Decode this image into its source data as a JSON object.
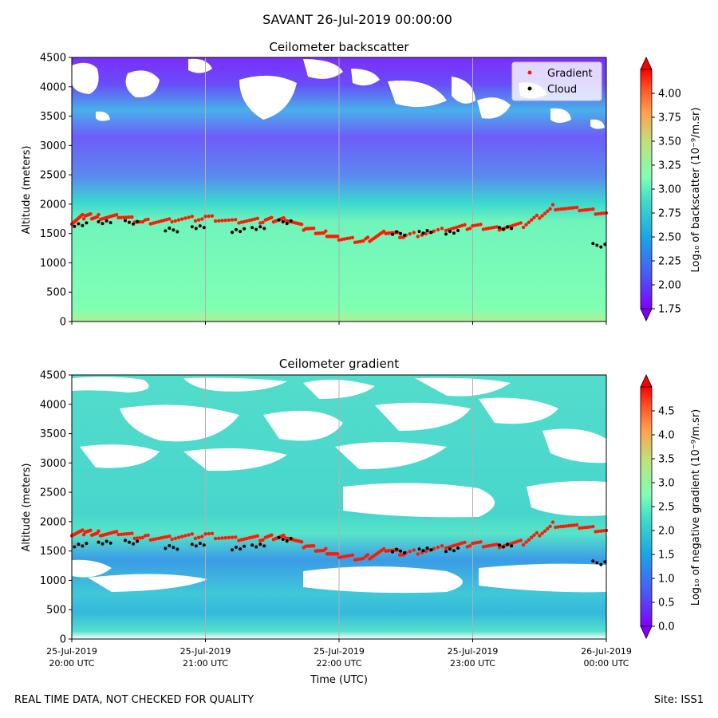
{
  "suptitle": "SAVANT 26-Jul-2019 00:00:00",
  "footer_left": "REAL TIME DATA, NOT CHECKED FOR QUALITY",
  "footer_right": "Site: ISS1",
  "colors": {
    "gradient_marker": "#ff1a00",
    "cloud_marker": "#000000",
    "background_fill_top": "#33ff99",
    "grid": "#b0b0b0"
  },
  "chart_data": [
    {
      "type": "heatmap",
      "title": "Ceilometer backscatter",
      "xlabel": "",
      "ylabel": "Altitude (meters)",
      "ylim": [
        0,
        4500
      ],
      "yticks": [
        0,
        500,
        1000,
        1500,
        2000,
        2500,
        3000,
        3500,
        4000,
        4500
      ],
      "x_hours": [
        0,
        1,
        2,
        3,
        4
      ],
      "xtick_labels": [
        "",
        "",
        "",
        "",
        ""
      ],
      "colorbar": {
        "label": "Log₁₀ of backscatter (10⁻⁹/m.sr)",
        "range": [
          1.75,
          4.25
        ],
        "ticks": [
          "1.75",
          "2.00",
          "2.25",
          "2.50",
          "2.75",
          "3.00",
          "3.25",
          "3.50",
          "3.75",
          "4.00"
        ],
        "tick_values": [
          1.75,
          2.0,
          2.25,
          2.5,
          2.75,
          3.0,
          3.25,
          3.5,
          3.75,
          4.0
        ]
      },
      "legend": {
        "position": "top-right",
        "entries": [
          "Gradient",
          "Cloud"
        ]
      },
      "gradient_points": [
        [
          0.0,
          1700
        ],
        [
          0.1,
          1800
        ],
        [
          0.2,
          1780
        ],
        [
          0.35,
          1780
        ],
        [
          0.55,
          1700
        ],
        [
          0.75,
          1720
        ],
        [
          1.0,
          1770
        ],
        [
          1.25,
          1710
        ],
        [
          1.45,
          1720
        ],
        [
          1.6,
          1760
        ],
        [
          1.75,
          1580
        ],
        [
          1.9,
          1500
        ],
        [
          2.0,
          1400
        ],
        [
          2.2,
          1380
        ],
        [
          2.35,
          1520
        ],
        [
          2.5,
          1450
        ],
        [
          2.8,
          1580
        ],
        [
          3.0,
          1620
        ],
        [
          3.2,
          1600
        ],
        [
          3.4,
          1650
        ],
        [
          3.6,
          1950
        ],
        [
          3.8,
          1900
        ],
        [
          4.0,
          1850
        ]
      ],
      "cloud_points": [
        [
          0.02,
          1650
        ],
        [
          0.2,
          1700
        ],
        [
          0.4,
          1690
        ],
        [
          0.7,
          1560
        ],
        [
          0.9,
          1600
        ],
        [
          1.2,
          1550
        ],
        [
          1.35,
          1600
        ],
        [
          1.55,
          1700
        ],
        [
          2.4,
          1500
        ],
        [
          2.6,
          1520
        ],
        [
          2.8,
          1520
        ],
        [
          3.2,
          1600
        ],
        [
          3.9,
          1300
        ]
      ]
    },
    {
      "type": "heatmap",
      "title": "Ceilometer gradient",
      "xlabel": "Time (UTC)",
      "ylabel": "Altitude (meters)",
      "ylim": [
        0,
        4500
      ],
      "yticks": [
        0,
        500,
        1000,
        1500,
        2000,
        2500,
        3000,
        3500,
        4000,
        4500
      ],
      "x_hours": [
        0,
        1,
        2,
        3,
        4
      ],
      "xtick_labels": [
        [
          "25-Jul-2019",
          "20:00 UTC"
        ],
        [
          "25-Jul-2019",
          "21:00 UTC"
        ],
        [
          "25-Jul-2019",
          "22:00 UTC"
        ],
        [
          "25-Jul-2019",
          "23:00 UTC"
        ],
        [
          "26-Jul-2019",
          "00:00 UTC"
        ]
      ],
      "colorbar": {
        "label": "Log₁₀ of negative gradient (10⁻⁹/m.sr)",
        "range": [
          0.0,
          5.0
        ],
        "ticks": [
          "0.0",
          "0.5",
          "1.0",
          "1.5",
          "2.0",
          "2.5",
          "3.0",
          "3.5",
          "4.0",
          "4.5"
        ],
        "tick_values": [
          0.0,
          0.5,
          1.0,
          1.5,
          2.0,
          2.5,
          3.0,
          3.5,
          4.0,
          4.5
        ]
      },
      "gradient_points": [
        [
          0.0,
          1800
        ],
        [
          0.1,
          1820
        ],
        [
          0.2,
          1800
        ],
        [
          0.35,
          1790
        ],
        [
          0.55,
          1730
        ],
        [
          0.75,
          1720
        ],
        [
          1.0,
          1770
        ],
        [
          1.25,
          1710
        ],
        [
          1.45,
          1720
        ],
        [
          1.6,
          1760
        ],
        [
          1.75,
          1580
        ],
        [
          1.9,
          1500
        ],
        [
          2.0,
          1400
        ],
        [
          2.2,
          1380
        ],
        [
          2.35,
          1520
        ],
        [
          2.5,
          1450
        ],
        [
          2.8,
          1580
        ],
        [
          3.0,
          1620
        ],
        [
          3.2,
          1600
        ],
        [
          3.4,
          1650
        ],
        [
          3.6,
          1950
        ],
        [
          3.8,
          1900
        ],
        [
          4.0,
          1850
        ]
      ],
      "cloud_points": [
        [
          0.02,
          1600
        ],
        [
          0.2,
          1650
        ],
        [
          0.4,
          1650
        ],
        [
          0.7,
          1560
        ],
        [
          0.9,
          1600
        ],
        [
          1.2,
          1550
        ],
        [
          1.35,
          1600
        ],
        [
          1.55,
          1700
        ],
        [
          2.4,
          1500
        ],
        [
          2.6,
          1520
        ],
        [
          2.8,
          1520
        ],
        [
          3.2,
          1600
        ],
        [
          3.9,
          1300
        ]
      ]
    }
  ]
}
